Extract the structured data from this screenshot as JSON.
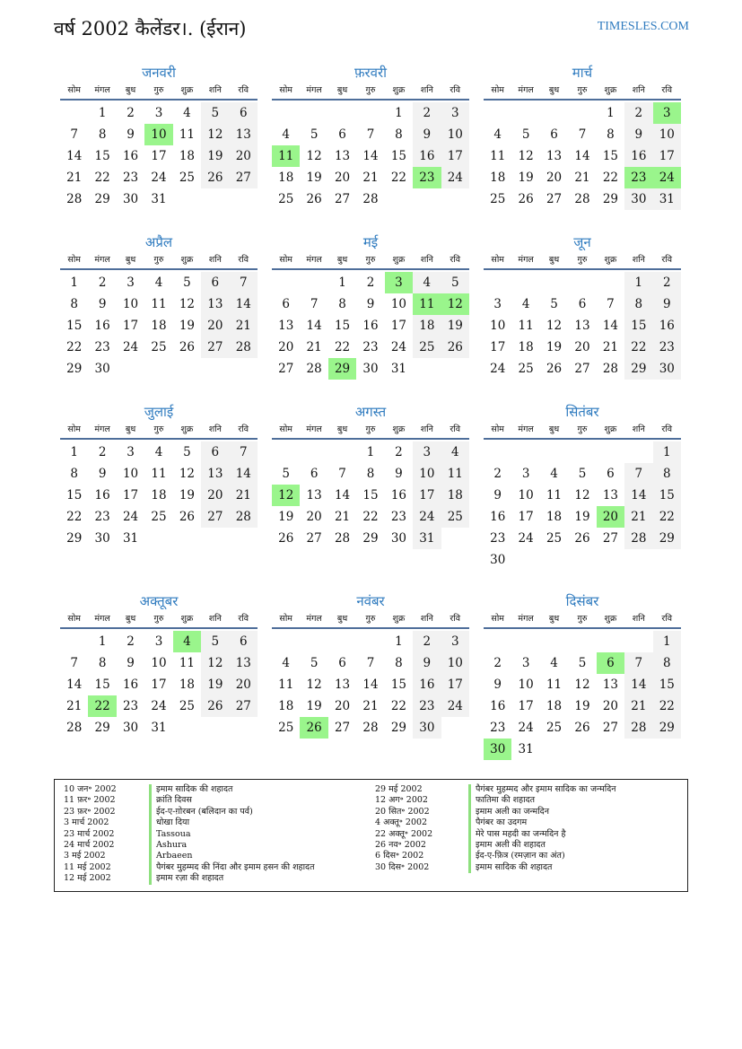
{
  "header": {
    "title": "वर्ष 2002 कैलेंडर।. (ईरान)",
    "site": "TIMESLES.COM"
  },
  "year": 2002,
  "weekdays": [
    "सोम",
    "मंगल",
    "बुध",
    "गुरु",
    "शुक्र",
    "शनि",
    "रवि"
  ],
  "colors": {
    "accent": "#2f7bbf",
    "holiday": "#9af58c",
    "weekend": "#f2f2f2",
    "rule": "#4e6e9a"
  },
  "months": [
    {
      "name": "जनवरी",
      "holidays": [
        10
      ]
    },
    {
      "name": "फ़रवरी",
      "holidays": [
        11,
        23
      ]
    },
    {
      "name": "मार्च",
      "holidays": [
        3,
        23,
        24
      ]
    },
    {
      "name": "अप्रैल",
      "holidays": []
    },
    {
      "name": "मई",
      "holidays": [
        3,
        11,
        12,
        29
      ]
    },
    {
      "name": "जून",
      "holidays": []
    },
    {
      "name": "जुलाई",
      "holidays": []
    },
    {
      "name": "अगस्त",
      "holidays": [
        12
      ]
    },
    {
      "name": "सितंबर",
      "holidays": [
        20
      ]
    },
    {
      "name": "अक्तूबर",
      "holidays": [
        4,
        22
      ]
    },
    {
      "name": "नवंबर",
      "holidays": [
        26
      ]
    },
    {
      "name": "दिसंबर",
      "holidays": [
        6,
        30
      ]
    }
  ],
  "legend": [
    {
      "date": "10 जन॰ 2002",
      "text": "इमाम सादिक की शहादत"
    },
    {
      "date": "11 फ़र॰ 2002",
      "text": "क्रांति दिवस"
    },
    {
      "date": "23 फ़र॰ 2002",
      "text": "ईद-ए-ग़ोरबन (बलिदान का पर्व)"
    },
    {
      "date": "3 मार्च 2002",
      "text": "धोखा दिया"
    },
    {
      "date": "23 मार्च 2002",
      "text": "Tassoua"
    },
    {
      "date": "24 मार्च 2002",
      "text": "Ashura"
    },
    {
      "date": "3 मई 2002",
      "text": "Arbaeen"
    },
    {
      "date": "11 मई 2002",
      "text": "पैगंबर मुहम्मद की निंदा और इमाम हसन की शहादत"
    },
    {
      "date": "12 मई 2002",
      "text": "इमाम रज़ा की शहादत"
    },
    {
      "date": "29 मई 2002",
      "text": "पैगंबर मुहम्मद और इमाम सादिक का जन्मदिन"
    },
    {
      "date": "12 अग॰ 2002",
      "text": "फातिमा की शहादत"
    },
    {
      "date": "20 सित॰ 2002",
      "text": "इमाम अली का जन्मदिन"
    },
    {
      "date": "4 अक्तू॰ 2002",
      "text": "पैगंबर का उदगम"
    },
    {
      "date": "22 अक्तू॰ 2002",
      "text": "मेरे पास महदी का जन्मदिन है"
    },
    {
      "date": "26 नव॰ 2002",
      "text": "इमाम अली की शहादत"
    },
    {
      "date": "6 दिस॰ 2002",
      "text": "ईद-ए-फ़ित्र (रमज़ान का अंत)"
    },
    {
      "date": "30 दिस॰ 2002",
      "text": "इमाम सादिक की शहादत"
    }
  ]
}
